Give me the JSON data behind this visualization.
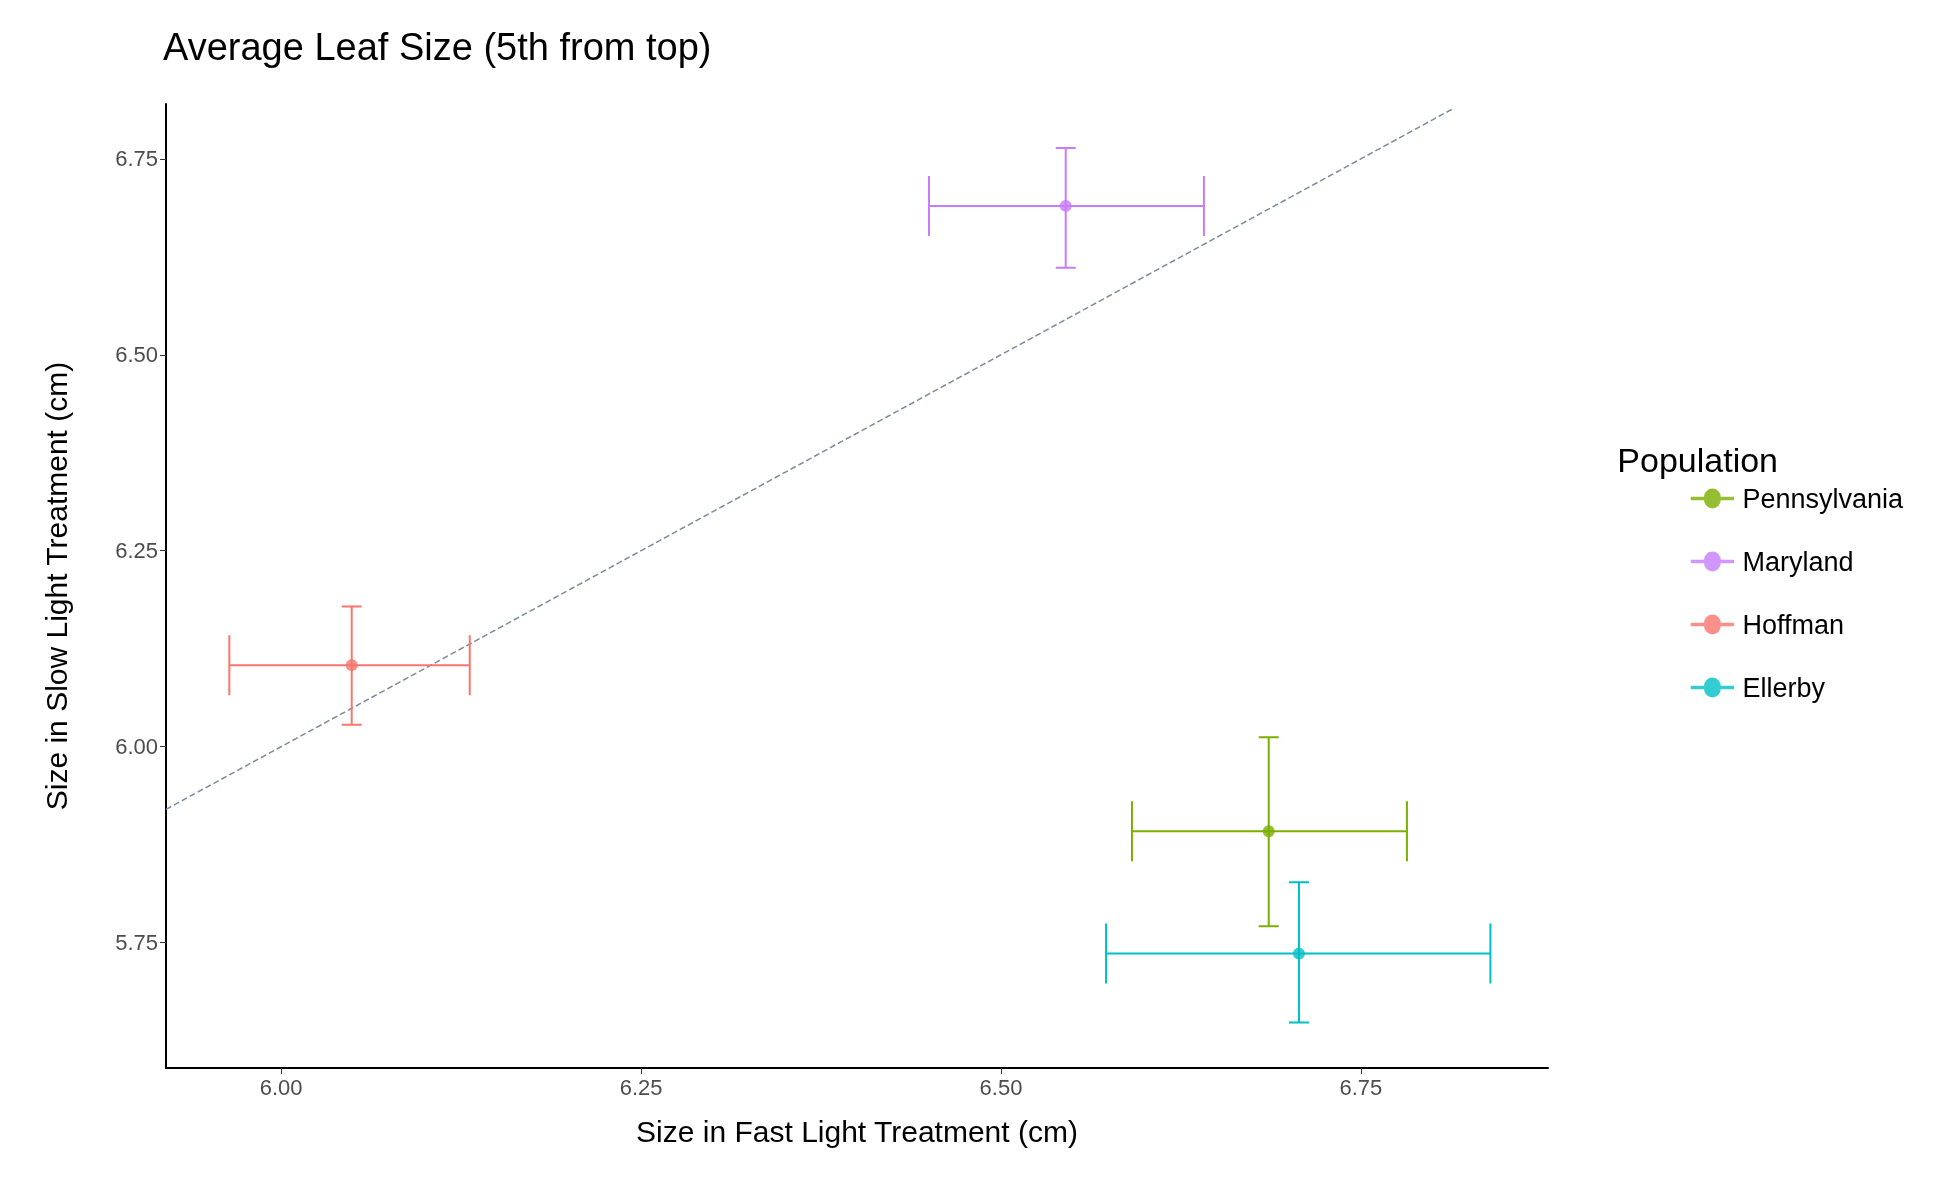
{
  "chart_data": {
    "type": "scatter",
    "title": "Average Leaf Size (5th from top)",
    "xlabel": "Size in Fast Light Treatment (cm)",
    "ylabel": "Size in Slow Light Treatment (cm)",
    "legend_title": "Population",
    "legend": "right",
    "grid": false,
    "marker": "circle",
    "xlim": [
      5.92,
      6.88
    ],
    "ylim": [
      5.59,
      6.82
    ],
    "xticks": [
      {
        "value": 6,
        "label": "6.00"
      },
      {
        "value": 6.25,
        "label": "6.25"
      },
      {
        "value": 6.5,
        "label": "6.50"
      },
      {
        "value": 6.75,
        "label": "6.75"
      }
    ],
    "yticks": [
      {
        "value": 5.75,
        "label": "5.75"
      },
      {
        "value": 6,
        "label": "6.00"
      },
      {
        "value": 6.25,
        "label": "6.25"
      },
      {
        "value": 6.5,
        "label": "6.50"
      },
      {
        "value": 6.75,
        "label": "6.75"
      }
    ],
    "series": [
      {
        "name": "Pennsylvania",
        "color": "#7cae00",
        "x": [
          6.686
        ],
        "values": [
          5.892
        ],
        "xerrors": [
          [
            6.591,
            6.782
          ]
        ],
        "errors": [
          [
            5.771,
            6.012
          ]
        ]
      },
      {
        "name": "Maryland",
        "color": "#c77cff",
        "x": [
          6.545
        ],
        "values": [
          6.69
        ],
        "xerrors": [
          [
            6.45,
            6.641
          ]
        ],
        "errors": [
          [
            6.611,
            6.764
          ]
        ]
      },
      {
        "name": "Hoffman",
        "color": "#f8766d",
        "x": [
          6.049
        ],
        "values": [
          6.104
        ],
        "xerrors": [
          [
            5.964,
            6.131
          ]
        ],
        "errors": [
          [
            6.028,
            6.179
          ]
        ]
      },
      {
        "name": "Ellerby",
        "color": "#00bfc4",
        "x": [
          6.707
        ],
        "values": [
          5.736
        ],
        "xerrors": [
          [
            6.573,
            6.84
          ]
        ],
        "errors": [
          [
            5.648,
            5.827
          ]
        ]
      },
      {
        "type": "line",
        "color": "#7f8a99",
        "line_style": "dashed",
        "marker": "none",
        "x": [
          5.92,
          6.815
        ],
        "values": [
          5.92,
          6.815
        ]
      }
    ]
  }
}
